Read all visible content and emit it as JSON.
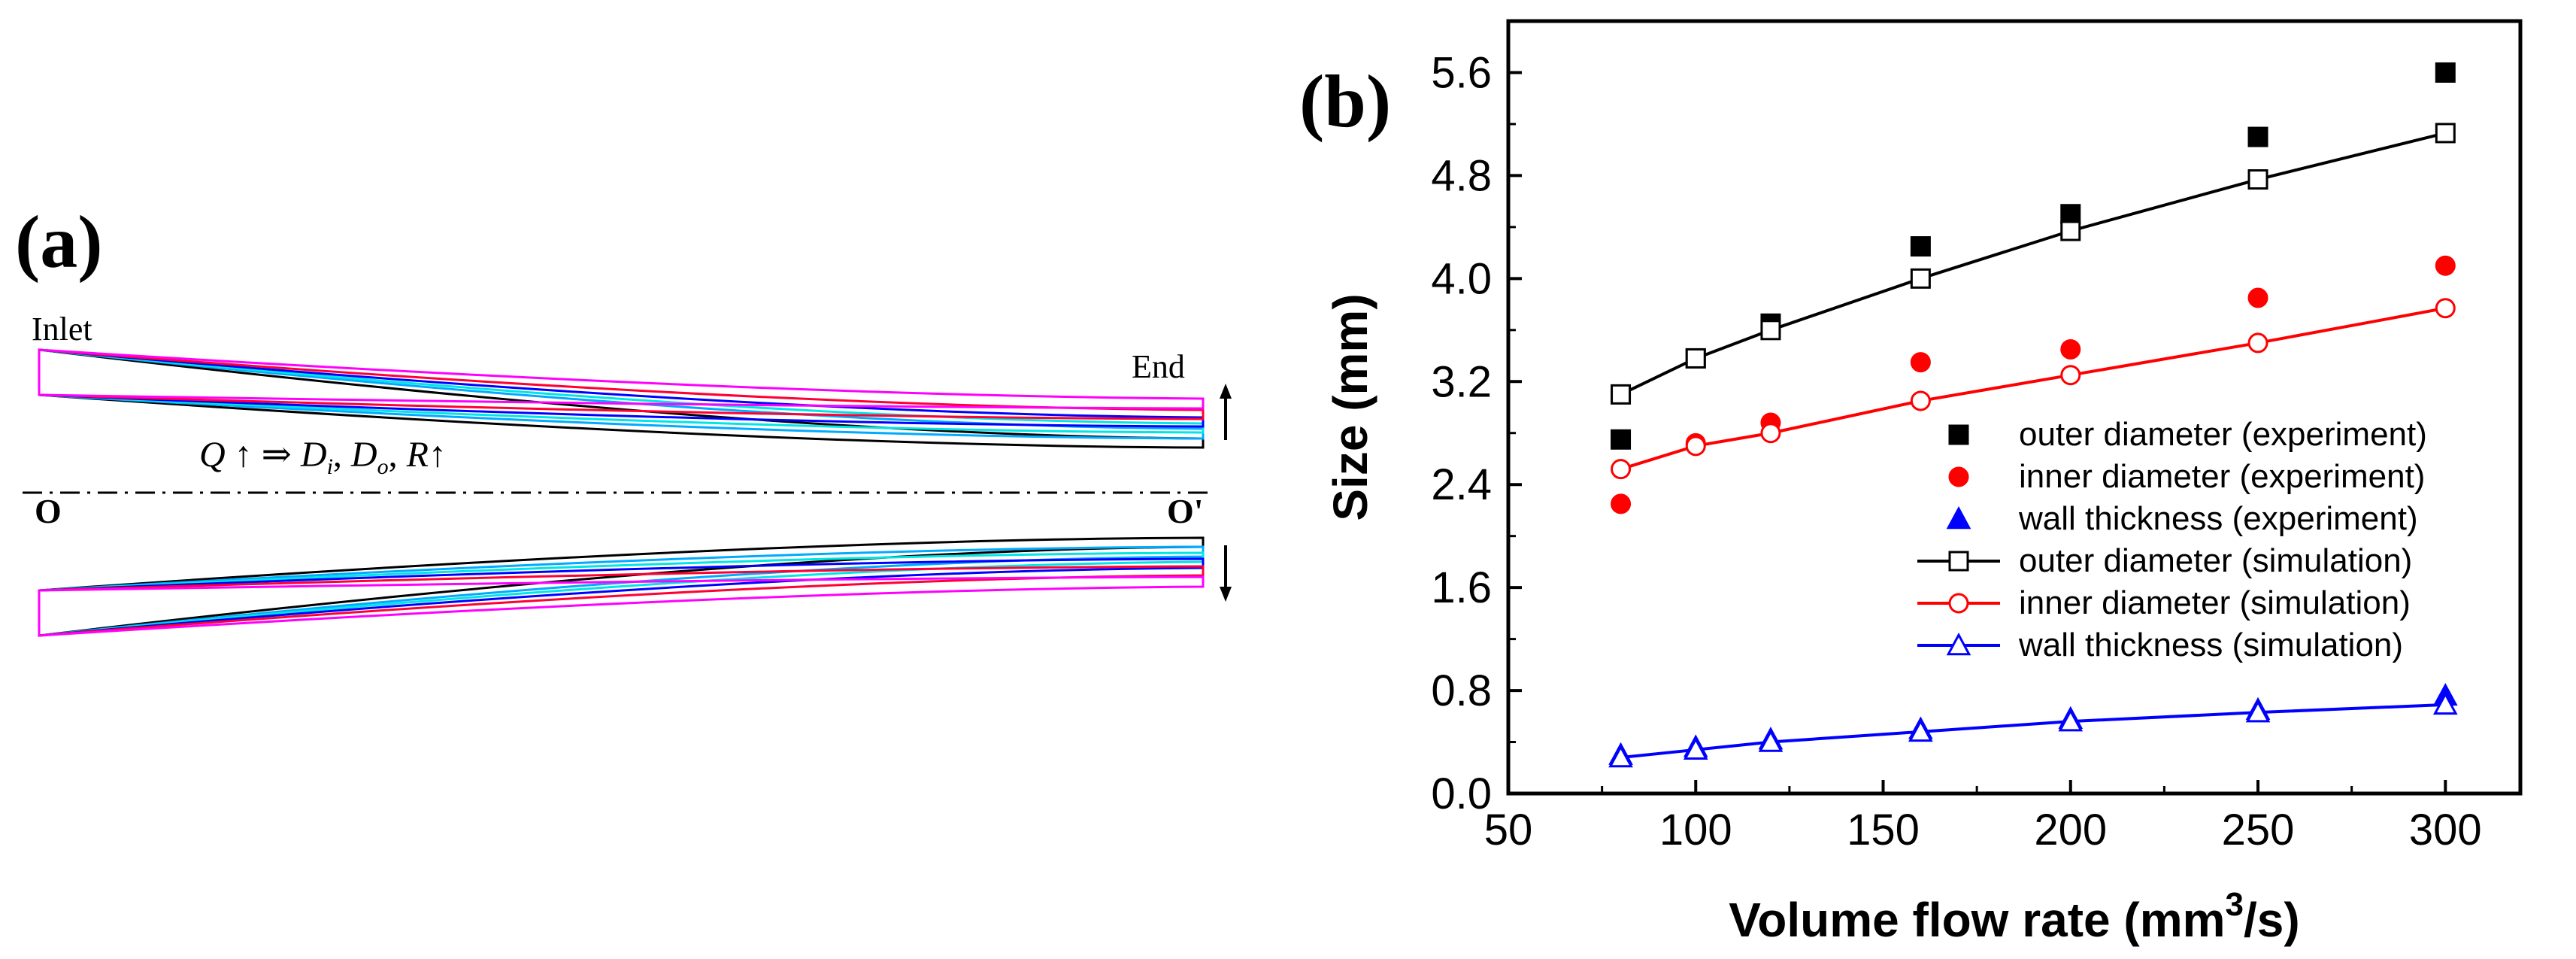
{
  "panel_a": {
    "label": "(a)",
    "inlet_label": "Inlet",
    "end_label": "End",
    "axis_start_label": "O",
    "axis_end_label": "O'",
    "relation": {
      "q": "Q",
      "up_arrow": "↑",
      "implies": "⇒",
      "d": "D",
      "sub_i": "i",
      "sep": ", ",
      "sub_o": "o",
      "r": "R",
      "up_arrow_2": "↑"
    },
    "profile_colors": [
      "#000000",
      "#00aaff",
      "#00e5e5",
      "#0000ff",
      "#ff0033",
      "#ff00ff"
    ]
  },
  "chart_data": {
    "type": "scatter",
    "panel_label": "(b)",
    "xlabel_main": "Volume flow rate (mm",
    "xlabel_sup": "3",
    "xlabel_end": "/s)",
    "ylabel": "Size (mm)",
    "xlim": [
      50,
      320
    ],
    "ylim": [
      0,
      6.0
    ],
    "xticks": [
      50,
      100,
      150,
      200,
      250,
      300
    ],
    "yticks": [
      0.0,
      0.8,
      1.6,
      2.4,
      3.2,
      4.0,
      4.8,
      5.6
    ],
    "ytick_labels": [
      "0.0",
      "0.8",
      "1.6",
      "2.4",
      "3.2",
      "4.0",
      "4.8",
      "5.6"
    ],
    "x": [
      80,
      100,
      120,
      160,
      200,
      250,
      300
    ],
    "series": [
      {
        "name": "outer diameter (experiment)",
        "marker": "square-filled",
        "color": "#000000",
        "line": false,
        "values": [
          2.75,
          3.38,
          3.65,
          4.25,
          4.5,
          5.1,
          5.6
        ]
      },
      {
        "name": "inner diameter (experiment)",
        "marker": "circle-filled",
        "color": "#ff0000",
        "line": false,
        "values": [
          2.25,
          2.72,
          2.88,
          3.35,
          3.45,
          3.85,
          4.1
        ]
      },
      {
        "name": "wall thickness (experiment)",
        "marker": "triangle-filled",
        "color": "#0000ff",
        "line": false,
        "values": [
          0.3,
          0.36,
          0.42,
          0.5,
          0.58,
          0.65,
          0.76
        ]
      },
      {
        "name": "outer diameter (simulation)",
        "marker": "square-open",
        "color": "#000000",
        "line": true,
        "values": [
          3.1,
          3.38,
          3.6,
          4.0,
          4.37,
          4.77,
          5.13
        ]
      },
      {
        "name": "inner diameter (simulation)",
        "marker": "circle-open",
        "color": "#ff0000",
        "line": true,
        "values": [
          2.52,
          2.7,
          2.8,
          3.05,
          3.25,
          3.5,
          3.77
        ]
      },
      {
        "name": "wall thickness (simulation)",
        "marker": "triangle-open",
        "color": "#0000ff",
        "line": true,
        "values": [
          0.28,
          0.34,
          0.4,
          0.48,
          0.56,
          0.63,
          0.69
        ]
      }
    ],
    "legend_position": "center-right"
  }
}
